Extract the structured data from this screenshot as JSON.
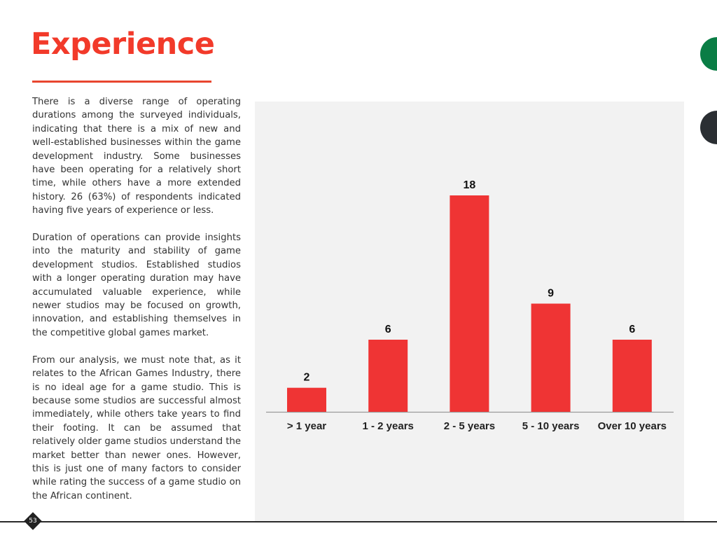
{
  "page": {
    "title": "Experience",
    "page_number": "53"
  },
  "body": {
    "paragraphs": [
      "There is a diverse range of operating durations among the surveyed individuals, indicating that there is a mix of new and well-established businesses within the game development industry. Some businesses have been operating for a relatively short time, while others have a more extended history. 26 (63%) of respondents indicated having five years of experience or less.",
      "Duration of operations can provide insights into the maturity and stability of game development studios. Established studios with a longer operating duration may have accumulated valuable experience, while newer studios may be focused on growth, innovation, and establishing themselves in the competitive global games market.",
      "From our analysis, we must note that, as it relates to the African Games Industry, there is no ideal age for a game studio. This is because some studios are successful almost immediately, while others take years to find their footing. It can be assumed that relatively older game studios understand the market better than newer ones. However, this is just one of many factors to consider while rating the success of a game studio on the African continent."
    ]
  },
  "colors": {
    "accent": "#f23a2a",
    "bar": "#ef3434",
    "panel": "#f2f2f2",
    "green_dot": "#0a7d45",
    "dark_dot": "#2b2f33"
  },
  "chart_data": {
    "type": "bar",
    "categories": [
      "> 1 year",
      "1 - 2 years",
      "2 - 5 years",
      "5 - 10 years",
      "Over 10 years"
    ],
    "values": [
      2,
      6,
      18,
      9,
      6
    ],
    "data_labels": [
      "2",
      "6",
      "18",
      "9",
      "6"
    ],
    "title": "",
    "xlabel": "",
    "ylabel": "",
    "ylim": [
      0,
      18
    ],
    "grid": false,
    "legend": "none"
  }
}
